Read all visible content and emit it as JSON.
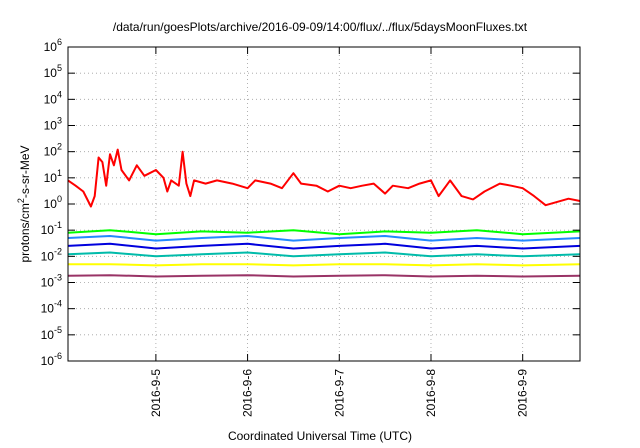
{
  "chart_data": {
    "type": "line",
    "title": "/data/run/goesPlots/archive/2016-09-09/14:00/flux/../flux/5daysMoonFluxes.txt",
    "xlabel": "Coordinated Universal Time (UTC)",
    "ylabel": {
      "before": "protons/cm",
      "sup": "2",
      "after": "-s-sr-MeV"
    },
    "y_scale": "log",
    "ylim": [
      1e-06,
      1000000.0
    ],
    "y_ticks": [
      {
        "value": 1e-06,
        "base": "10",
        "exp": "-6"
      },
      {
        "value": 1e-05,
        "base": "10",
        "exp": "-5"
      },
      {
        "value": 0.0001,
        "base": "10",
        "exp": "-4"
      },
      {
        "value": 0.001,
        "base": "10",
        "exp": "-3"
      },
      {
        "value": 0.01,
        "base": "10",
        "exp": "-2"
      },
      {
        "value": 0.1,
        "base": "10",
        "exp": "-1"
      },
      {
        "value": 1,
        "base": "10",
        "exp": "0"
      },
      {
        "value": 10,
        "base": "10",
        "exp": "1"
      },
      {
        "value": 100,
        "base": "10",
        "exp": "2"
      },
      {
        "value": 1000,
        "base": "10",
        "exp": "3"
      },
      {
        "value": 10000,
        "base": "10",
        "exp": "4"
      },
      {
        "value": 100000,
        "base": "10",
        "exp": "5"
      },
      {
        "value": 1000000,
        "base": "10",
        "exp": "6"
      }
    ],
    "xlim": [
      "2016-09-04T01:00",
      "2016-09-09T15:00"
    ],
    "x_ticks": [
      {
        "label": "2016-9-5",
        "value": "2016-09-05T00:00"
      },
      {
        "label": "2016-9-6",
        "value": "2016-09-06T00:00"
      },
      {
        "label": "2016-9-7",
        "value": "2016-09-07T00:00"
      },
      {
        "label": "2016-9-8",
        "value": "2016-09-08T00:00"
      },
      {
        "label": "2016-9-9",
        "value": "2016-09-09T00:00"
      }
    ],
    "grid": true,
    "series": [
      {
        "color": "#ff0000",
        "values": [
          [
            "2016-09-04T01:00",
            8
          ],
          [
            "2016-09-04T03:00",
            5
          ],
          [
            "2016-09-04T05:00",
            3
          ],
          [
            "2016-09-04T07:00",
            0.8
          ],
          [
            "2016-09-04T08:00",
            2
          ],
          [
            "2016-09-04T09:00",
            60
          ],
          [
            "2016-09-04T10:00",
            40
          ],
          [
            "2016-09-04T11:00",
            5
          ],
          [
            "2016-09-04T12:00",
            80
          ],
          [
            "2016-09-04T13:00",
            30
          ],
          [
            "2016-09-04T14:00",
            120
          ],
          [
            "2016-09-04T15:00",
            20
          ],
          [
            "2016-09-04T17:00",
            8
          ],
          [
            "2016-09-04T19:00",
            30
          ],
          [
            "2016-09-04T21:00",
            12
          ],
          [
            "2016-09-05T00:00",
            20
          ],
          [
            "2016-09-05T02:00",
            10
          ],
          [
            "2016-09-05T03:00",
            3
          ],
          [
            "2016-09-05T04:00",
            8
          ],
          [
            "2016-09-05T06:00",
            5
          ],
          [
            "2016-09-05T07:00",
            100
          ],
          [
            "2016-09-05T08:00",
            6
          ],
          [
            "2016-09-05T09:00",
            2
          ],
          [
            "2016-09-05T10:00",
            8
          ],
          [
            "2016-09-05T13:00",
            6
          ],
          [
            "2016-09-05T16:00",
            8
          ],
          [
            "2016-09-05T20:00",
            6
          ],
          [
            "2016-09-06T00:00",
            4
          ],
          [
            "2016-09-06T02:00",
            8
          ],
          [
            "2016-09-06T06:00",
            6
          ],
          [
            "2016-09-06T09:00",
            4
          ],
          [
            "2016-09-06T12:00",
            15
          ],
          [
            "2016-09-06T14:00",
            6
          ],
          [
            "2016-09-06T18:00",
            5
          ],
          [
            "2016-09-06T21:00",
            3
          ],
          [
            "2016-09-07T00:00",
            5
          ],
          [
            "2016-09-07T03:00",
            4
          ],
          [
            "2016-09-07T06:00",
            5
          ],
          [
            "2016-09-07T09:00",
            6
          ],
          [
            "2016-09-07T12:00",
            2.5
          ],
          [
            "2016-09-07T14:00",
            5
          ],
          [
            "2016-09-07T18:00",
            4
          ],
          [
            "2016-09-07T21:00",
            6
          ],
          [
            "2016-09-08T00:00",
            8
          ],
          [
            "2016-09-08T02:00",
            2
          ],
          [
            "2016-09-08T04:00",
            5
          ],
          [
            "2016-09-08T05:00",
            8
          ],
          [
            "2016-09-08T08:00",
            2
          ],
          [
            "2016-09-08T11:00",
            1.5
          ],
          [
            "2016-09-08T14:00",
            3
          ],
          [
            "2016-09-08T18:00",
            6
          ],
          [
            "2016-09-08T21:00",
            5
          ],
          [
            "2016-09-09T00:00",
            4
          ],
          [
            "2016-09-09T03:00",
            2
          ],
          [
            "2016-09-09T06:00",
            0.9
          ],
          [
            "2016-09-09T09:00",
            1.2
          ],
          [
            "2016-09-09T12:00",
            1.6
          ],
          [
            "2016-09-09T15:00",
            1.3
          ]
        ]
      },
      {
        "color": "#00ff00",
        "values": [
          [
            "2016-09-04T01:00",
            0.08
          ],
          [
            "2016-09-04T12:00",
            0.1
          ],
          [
            "2016-09-05T00:00",
            0.07
          ],
          [
            "2016-09-05T12:00",
            0.09
          ],
          [
            "2016-09-06T00:00",
            0.08
          ],
          [
            "2016-09-06T12:00",
            0.1
          ],
          [
            "2016-09-07T00:00",
            0.07
          ],
          [
            "2016-09-07T12:00",
            0.09
          ],
          [
            "2016-09-08T00:00",
            0.08
          ],
          [
            "2016-09-08T12:00",
            0.1
          ],
          [
            "2016-09-09T00:00",
            0.07
          ],
          [
            "2016-09-09T15:00",
            0.09
          ]
        ]
      },
      {
        "color": "#2288ff",
        "values": [
          [
            "2016-09-04T01:00",
            0.05
          ],
          [
            "2016-09-04T12:00",
            0.06
          ],
          [
            "2016-09-05T00:00",
            0.04
          ],
          [
            "2016-09-05T12:00",
            0.05
          ],
          [
            "2016-09-06T00:00",
            0.06
          ],
          [
            "2016-09-06T12:00",
            0.04
          ],
          [
            "2016-09-07T00:00",
            0.05
          ],
          [
            "2016-09-07T12:00",
            0.06
          ],
          [
            "2016-09-08T00:00",
            0.04
          ],
          [
            "2016-09-08T12:00",
            0.05
          ],
          [
            "2016-09-09T00:00",
            0.04
          ],
          [
            "2016-09-09T15:00",
            0.05
          ]
        ]
      },
      {
        "color": "#0000dd",
        "values": [
          [
            "2016-09-04T01:00",
            0.025
          ],
          [
            "2016-09-04T12:00",
            0.03
          ],
          [
            "2016-09-05T00:00",
            0.02
          ],
          [
            "2016-09-05T12:00",
            0.025
          ],
          [
            "2016-09-06T00:00",
            0.03
          ],
          [
            "2016-09-06T12:00",
            0.02
          ],
          [
            "2016-09-07T00:00",
            0.025
          ],
          [
            "2016-09-07T12:00",
            0.03
          ],
          [
            "2016-09-08T00:00",
            0.02
          ],
          [
            "2016-09-08T12:00",
            0.025
          ],
          [
            "2016-09-09T00:00",
            0.02
          ],
          [
            "2016-09-09T15:00",
            0.025
          ]
        ]
      },
      {
        "color": "#00bbaa",
        "values": [
          [
            "2016-09-04T01:00",
            0.012
          ],
          [
            "2016-09-04T12:00",
            0.014
          ],
          [
            "2016-09-05T00:00",
            0.01
          ],
          [
            "2016-09-05T12:00",
            0.012
          ],
          [
            "2016-09-06T00:00",
            0.014
          ],
          [
            "2016-09-06T12:00",
            0.01
          ],
          [
            "2016-09-07T00:00",
            0.012
          ],
          [
            "2016-09-07T12:00",
            0.014
          ],
          [
            "2016-09-08T00:00",
            0.01
          ],
          [
            "2016-09-08T12:00",
            0.012
          ],
          [
            "2016-09-09T00:00",
            0.01
          ],
          [
            "2016-09-09T15:00",
            0.012
          ]
        ]
      },
      {
        "color": "#ffff00",
        "values": [
          [
            "2016-09-04T01:00",
            0.005
          ],
          [
            "2016-09-04T12:00",
            0.005
          ],
          [
            "2016-09-05T00:00",
            0.0045
          ],
          [
            "2016-09-05T12:00",
            0.005
          ],
          [
            "2016-09-06T00:00",
            0.005
          ],
          [
            "2016-09-06T12:00",
            0.0045
          ],
          [
            "2016-09-07T00:00",
            0.005
          ],
          [
            "2016-09-07T12:00",
            0.005
          ],
          [
            "2016-09-08T00:00",
            0.0045
          ],
          [
            "2016-09-08T12:00",
            0.005
          ],
          [
            "2016-09-09T00:00",
            0.0045
          ],
          [
            "2016-09-09T15:00",
            0.005
          ]
        ]
      },
      {
        "color": "#993366",
        "values": [
          [
            "2016-09-04T01:00",
            0.0018
          ],
          [
            "2016-09-04T12:00",
            0.0019
          ],
          [
            "2016-09-05T00:00",
            0.0017
          ],
          [
            "2016-09-05T12:00",
            0.0018
          ],
          [
            "2016-09-06T00:00",
            0.0019
          ],
          [
            "2016-09-06T12:00",
            0.0017
          ],
          [
            "2016-09-07T00:00",
            0.0018
          ],
          [
            "2016-09-07T12:00",
            0.0019
          ],
          [
            "2016-09-08T00:00",
            0.0017
          ],
          [
            "2016-09-08T12:00",
            0.0018
          ],
          [
            "2016-09-09T00:00",
            0.0017
          ],
          [
            "2016-09-09T15:00",
            0.0018
          ]
        ]
      }
    ]
  }
}
